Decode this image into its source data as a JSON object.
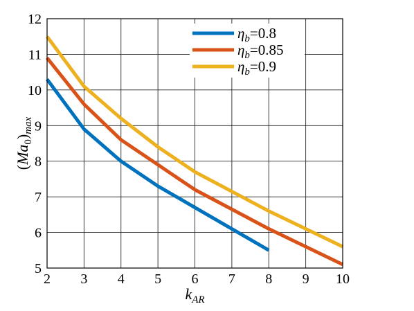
{
  "chart_data": {
    "type": "line",
    "xlabel": "k_AR",
    "ylabel": "(Ma_0)_max",
    "xlim": [
      2,
      10
    ],
    "ylim": [
      5,
      12
    ],
    "grid": true,
    "legend_position": "top-right",
    "x_ticks": [
      "2",
      "3",
      "4",
      "5",
      "6",
      "7",
      "8",
      "9",
      "10"
    ],
    "y_ticks": [
      "5",
      "6",
      "7",
      "8",
      "9",
      "10",
      "11",
      "12"
    ],
    "series": [
      {
        "name": "η_b=0.8",
        "legend_prefix": "η",
        "legend_sub": "b",
        "legend_suffix": "=0.8",
        "color": "#0072BD",
        "x": [
          2,
          3,
          4,
          5,
          6,
          7,
          8
        ],
        "y": [
          10.3,
          8.9,
          8.0,
          7.3,
          6.7,
          6.1,
          5.5
        ]
      },
      {
        "name": "η_b=0.85",
        "legend_prefix": "η",
        "legend_sub": "b",
        "legend_suffix": "=0.85",
        "color": "#D95319",
        "x": [
          2,
          3,
          4,
          5,
          6,
          7,
          8,
          9,
          10
        ],
        "y": [
          10.9,
          9.6,
          8.6,
          7.9,
          7.2,
          6.65,
          6.1,
          5.6,
          5.1
        ]
      },
      {
        "name": "η_b=0.9",
        "legend_prefix": "η",
        "legend_sub": "b",
        "legend_suffix": "=0.9",
        "color": "#EDB120",
        "x": [
          2,
          3,
          4,
          5,
          6,
          7,
          8,
          9,
          10
        ],
        "y": [
          11.5,
          10.1,
          9.2,
          8.4,
          7.7,
          7.15,
          6.6,
          6.1,
          5.6
        ]
      }
    ]
  }
}
